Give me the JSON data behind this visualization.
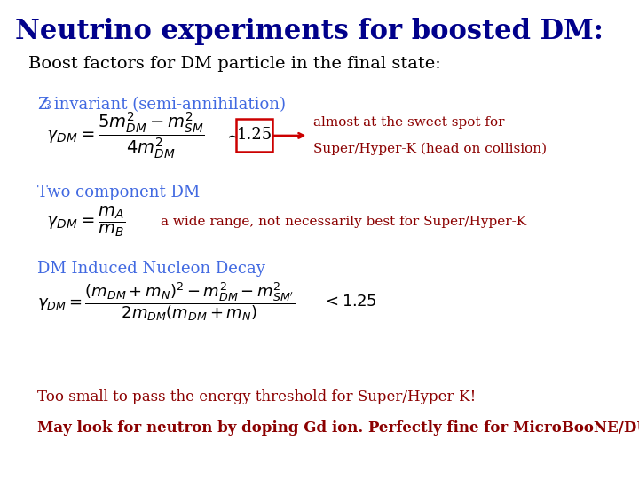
{
  "title": "Neutrino experiments for boosted DM:",
  "title_color": "#00008B",
  "title_fontsize": 22,
  "subtitle": "Boost factors for DM particle in the final state:",
  "subtitle_color": "#000000",
  "subtitle_fontsize": 14,
  "bg_color": "#FFFFFF",
  "section1_label_main": "Z",
  "section1_label_sub": "3",
  "section1_label_rest": " invariant (semi-annihilation)",
  "section1_color": "#4169E1",
  "section1_fontsize": 13,
  "section1_formula": "$\\gamma_{DM} = \\dfrac{5m_{DM}^2 - m_{SM}^2}{4m_{DM}^2}$",
  "section1_box_value": "1.25",
  "section1_annotation_line1": "almost at the sweet spot for",
  "section1_annotation_line2": "Super/Hyper-K (head on collision)",
  "section1_annot_color": "#8B0000",
  "section2_label": "Two component DM",
  "section2_color": "#4169E1",
  "section2_fontsize": 13,
  "section2_formula": "$\\gamma_{DM} = \\dfrac{m_A}{m_B}$",
  "section2_annotation": "a wide range, not necessarily best for Super/Hyper-K",
  "section2_annot_color": "#8B0000",
  "section3_label": "DM Induced Nucleon Decay",
  "section3_color": "#4169E1",
  "section3_fontsize": 13,
  "section3_formula": "$\\gamma_{DM} = \\dfrac{(m_{DM}+m_N)^2 - m_{DM}^2 - m_{SM'}^2}{2m_{DM}(m_{DM}+m_N)}$",
  "section3_approx": "$< 1.25$",
  "footer1": "Too small to pass the energy threshold for Super/Hyper-K!",
  "footer1_color": "#8B0000",
  "footer1_fontsize": 12,
  "footer2": "May look for neutron by doping Gd ion. Perfectly fine for MicroBooNE/DUNE!",
  "footer2_color": "#8B0000",
  "footer2_fontsize": 12,
  "box_color": "#CC0000"
}
